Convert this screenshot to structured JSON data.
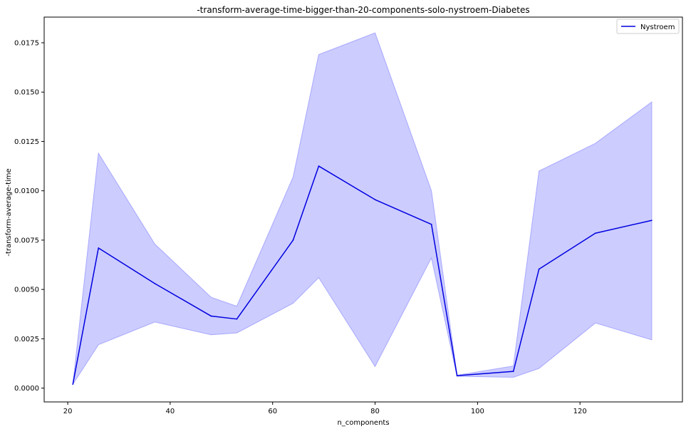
{
  "chart_data": {
    "type": "line",
    "title": "-transform-average-time-bigger-than-20-components-solo-nystroem-Diabetes",
    "xlabel": "n_components",
    "ylabel": "-transform-average-time",
    "xlim": [
      15.4,
      140
    ],
    "ylim": [
      -0.0007,
      0.0188
    ],
    "x_ticks": [
      20,
      40,
      60,
      80,
      100,
      120
    ],
    "y_ticks": [
      0.0,
      0.0025,
      0.005,
      0.0075,
      0.01,
      0.0125,
      0.015,
      0.0175
    ],
    "x_tick_labels": [
      "20",
      "40",
      "60",
      "80",
      "100",
      "120"
    ],
    "y_tick_labels": [
      "0.0000",
      "0.0025",
      "0.0050",
      "0.0075",
      "0.0100",
      "0.0125",
      "0.0150",
      "0.0175"
    ],
    "legend_position": "top-right",
    "grid": false,
    "series": [
      {
        "name": "Nystroem",
        "color": "#0000e0",
        "band_color": "#ccccff",
        "x": [
          21,
          26,
          37,
          48,
          53,
          64,
          69,
          80,
          91,
          96,
          107,
          112,
          123,
          134
        ],
        "values": [
          0.0002,
          0.0071,
          0.0053,
          0.00365,
          0.0035,
          0.0075,
          0.01125,
          0.00955,
          0.0083,
          0.00063,
          0.00085,
          0.00603,
          0.00785,
          0.0085
        ],
        "upper": [
          0.0002,
          0.0119,
          0.0073,
          0.0046,
          0.00415,
          0.0107,
          0.0169,
          0.018,
          0.01,
          0.00065,
          0.00112,
          0.011,
          0.0124,
          0.0145
        ],
        "lower": [
          0.0002,
          0.0022,
          0.00335,
          0.0027,
          0.0028,
          0.0043,
          0.0056,
          0.0011,
          0.0066,
          0.0006,
          0.00055,
          0.001,
          0.0033,
          0.00245
        ]
      }
    ]
  }
}
